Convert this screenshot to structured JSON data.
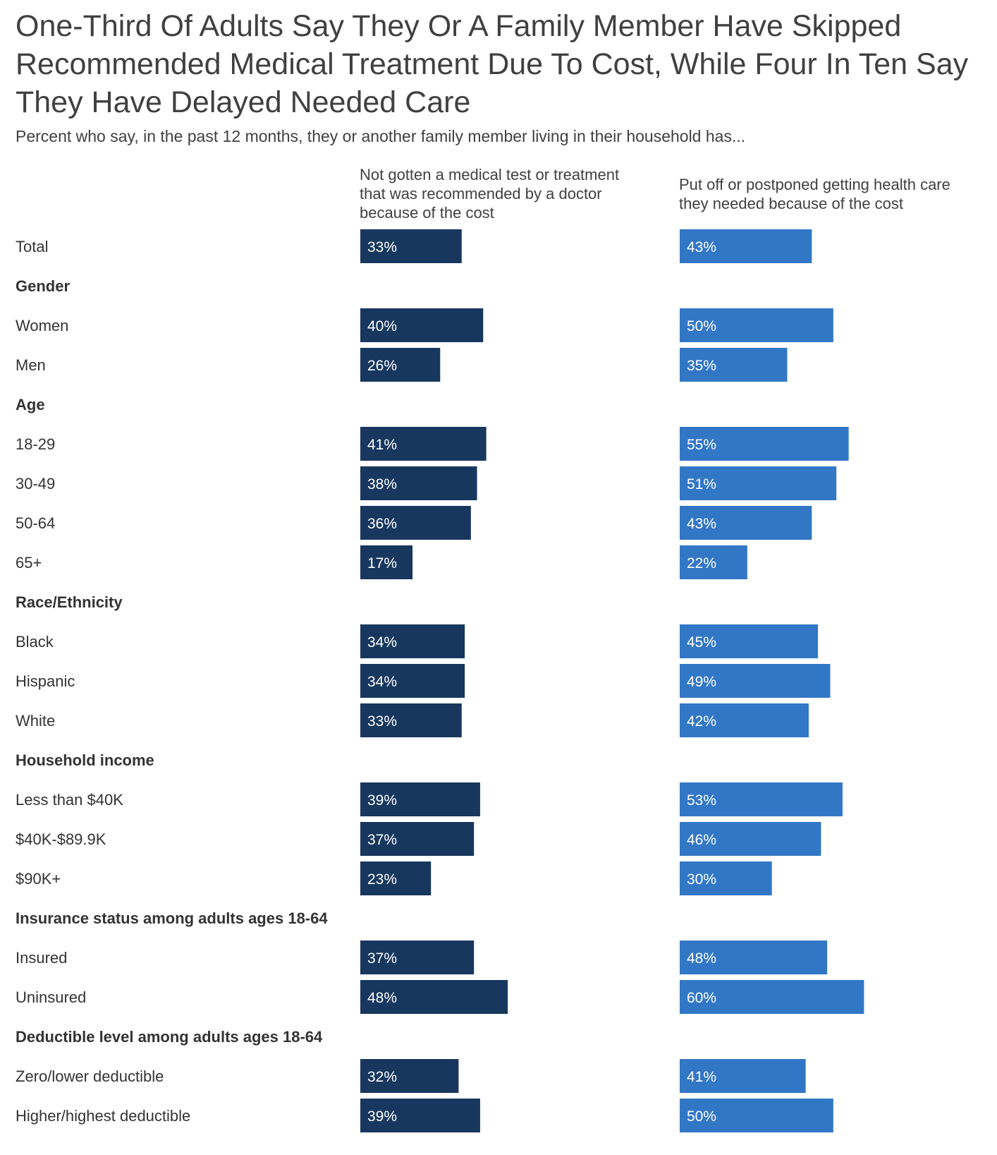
{
  "title": "One-Third Of Adults Say They Or A Family Member Have Skipped Recommended Medical Treatment Due To Cost, While Four In Ten Say They Have Delayed Needed Care",
  "subtitle": "Percent who say, in the past 12 months, they or another family member living in their household has...",
  "colors": {
    "series1": "#17375e",
    "series2": "#3277c6",
    "text": "#333333"
  },
  "chart_data": {
    "type": "bar",
    "orientation": "horizontal",
    "value_format": "percent",
    "xlim": [
      0,
      100
    ],
    "grid": false,
    "series": [
      {
        "name": "Not gotten a medical test or treatment that was recommended by a doctor because of the cost",
        "header": "Not gotten a medical test or treatment\nthat was recommended by a doctor\nbecause of the cost",
        "values": [
          33,
          null,
          40,
          26,
          null,
          41,
          38,
          36,
          17,
          null,
          34,
          34,
          33,
          null,
          39,
          37,
          23,
          null,
          37,
          48,
          null,
          32,
          39
        ]
      },
      {
        "name": "Put off or postponed getting health care they needed because of the cost",
        "header": "Put off or postponed getting health care\nthey needed because of the cost",
        "values": [
          43,
          null,
          50,
          35,
          null,
          55,
          51,
          43,
          22,
          null,
          45,
          49,
          42,
          null,
          53,
          46,
          30,
          null,
          48,
          60,
          null,
          41,
          50
        ]
      }
    ],
    "rows": [
      {
        "label": "Total",
        "group": false
      },
      {
        "label": "Gender",
        "group": true
      },
      {
        "label": "Women",
        "group": false
      },
      {
        "label": "Men",
        "group": false
      },
      {
        "label": "Age",
        "group": true
      },
      {
        "label": "18-29",
        "group": false
      },
      {
        "label": "30-49",
        "group": false
      },
      {
        "label": "50-64",
        "group": false
      },
      {
        "label": "65+",
        "group": false
      },
      {
        "label": "Race/Ethnicity",
        "group": true
      },
      {
        "label": "Black",
        "group": false
      },
      {
        "label": "Hispanic",
        "group": false
      },
      {
        "label": "White",
        "group": false
      },
      {
        "label": "Household income",
        "group": true
      },
      {
        "label": "Less than $40K",
        "group": false
      },
      {
        "label": "$40K-$89.9K",
        "group": false
      },
      {
        "label": "$90K+",
        "group": false
      },
      {
        "label": "Insurance status among adults ages 18-64",
        "group": true
      },
      {
        "label": "Insured",
        "group": false
      },
      {
        "label": "Uninsured",
        "group": false
      },
      {
        "label": "Deductible level among adults ages 18-64",
        "group": true
      },
      {
        "label": "Zero/lower deductible",
        "group": false
      },
      {
        "label": "Higher/highest deductible",
        "group": false
      }
    ]
  }
}
